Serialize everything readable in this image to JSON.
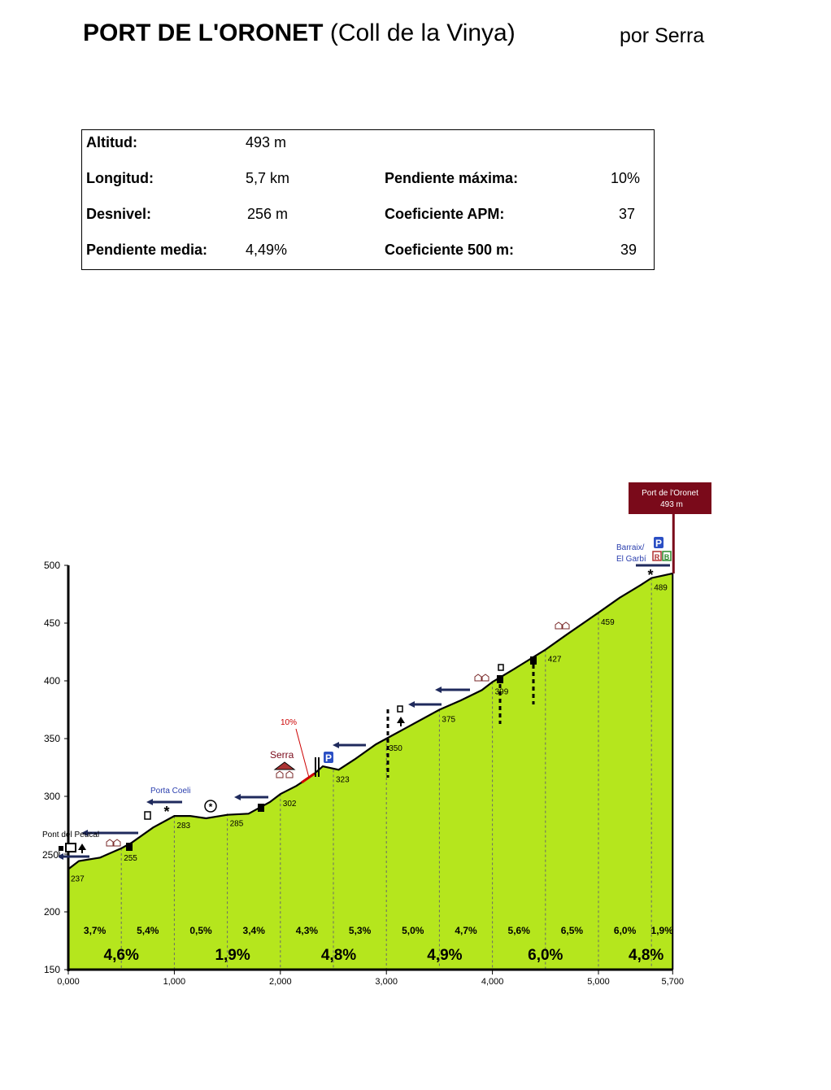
{
  "header": {
    "title_main": "PORT DE L'ORONET",
    "title_sub": "(Coll de la Vinya)",
    "author": "por Serra"
  },
  "stats": {
    "altitud_label": "Altitud:",
    "altitud_value": "493 m",
    "longitud_label": "Longitud:",
    "longitud_value": "5,7 km",
    "desnivel_label": "Desnivel:",
    "desnivel_value": "256 m",
    "pendiente_media_label": "Pendiente media:",
    "pendiente_media_value": "4,49%",
    "pendiente_maxima_label": "Pendiente máxima:",
    "pendiente_maxima_value": "10%",
    "apm_label": "Coeficiente APM:",
    "apm_value": "37",
    "c500_label": "Coeficiente 500 m:",
    "c500_value": "39"
  },
  "chart_data": {
    "type": "area",
    "xlim": [
      0,
      5.7
    ],
    "ylim": [
      150,
      500
    ],
    "x_ticks": [
      0,
      1,
      2,
      3,
      4,
      5,
      5.7
    ],
    "x_tick_labels": [
      "0,000",
      "1,000",
      "2,000",
      "3,000",
      "4,000",
      "5,000",
      "5,700"
    ],
    "y_ticks": [
      150,
      200,
      250,
      300,
      350,
      400,
      450,
      500
    ],
    "y_tick_labels": [
      "150",
      "200",
      "250",
      "300",
      "350",
      "400",
      "450",
      "500"
    ],
    "profile": {
      "x": [
        0,
        0.1,
        0.3,
        0.5,
        0.6,
        0.8,
        1.0,
        1.15,
        1.3,
        1.5,
        1.7,
        1.9,
        2.0,
        2.15,
        2.3,
        2.4,
        2.55,
        2.7,
        2.9,
        3.0,
        3.2,
        3.5,
        3.7,
        3.9,
        4.0,
        4.2,
        4.5,
        4.7,
        5.0,
        5.2,
        5.4,
        5.5,
        5.6,
        5.7
      ],
      "y": [
        237,
        244,
        247,
        255,
        260,
        273,
        283,
        283,
        281,
        284,
        285,
        295,
        302,
        309,
        318,
        326,
        323,
        332,
        345,
        350,
        360,
        375,
        383,
        392,
        399,
        410,
        427,
        440,
        459,
        472,
        483,
        489,
        491,
        493
      ]
    },
    "km_markers": [
      {
        "x": 0,
        "y": 237,
        "label": "237"
      },
      {
        "x": 0.5,
        "y": 255,
        "label": "255"
      },
      {
        "x": 1.0,
        "y": 283,
        "label": "283"
      },
      {
        "x": 1.5,
        "y": 285,
        "label": "285"
      },
      {
        "x": 2.0,
        "y": 302,
        "label": "302"
      },
      {
        "x": 2.5,
        "y": 323,
        "label": "323"
      },
      {
        "x": 3.0,
        "y": 350,
        "label": "350"
      },
      {
        "x": 3.5,
        "y": 375,
        "label": "375"
      },
      {
        "x": 4.0,
        "y": 399,
        "label": "399"
      },
      {
        "x": 4.5,
        "y": 427,
        "label": "427"
      },
      {
        "x": 5.0,
        "y": 459,
        "label": "459"
      },
      {
        "x": 5.5,
        "y": 489,
        "label": "489"
      }
    ],
    "half_km_slopes": [
      {
        "x": 0.25,
        "label": "3,7%"
      },
      {
        "x": 0.75,
        "label": "5,4%"
      },
      {
        "x": 1.25,
        "label": "0,5%"
      },
      {
        "x": 1.75,
        "label": "3,4%"
      },
      {
        "x": 2.25,
        "label": "4,3%"
      },
      {
        "x": 2.75,
        "label": "5,3%"
      },
      {
        "x": 3.25,
        "label": "5,0%"
      },
      {
        "x": 3.75,
        "label": "4,7%"
      },
      {
        "x": 4.25,
        "label": "5,6%"
      },
      {
        "x": 4.75,
        "label": "6,5%"
      },
      {
        "x": 5.25,
        "label": "6,0%"
      },
      {
        "x": 5.6,
        "label": "1,9%"
      }
    ],
    "km_slopes": [
      {
        "x": 0.5,
        "label": "4,6%"
      },
      {
        "x": 1.55,
        "label": "1,9%"
      },
      {
        "x": 2.55,
        "label": "4,8%"
      },
      {
        "x": 3.55,
        "label": "4,9%"
      },
      {
        "x": 4.5,
        "label": "6,0%"
      },
      {
        "x": 5.45,
        "label": "4,8%"
      }
    ],
    "annotations": {
      "pont_del_peucal": "Pont del Peucal",
      "start_elev_label": "250",
      "porta_coeli": "Porta Coeli",
      "serra": "Serra",
      "max_slope": "10%",
      "barraix": "Barraix/",
      "el_garbi": "El Garbí",
      "summit_name": "Port de l'Oronet",
      "summit_elev": "493 m",
      "parking_symbol": "P",
      "parking_symbol_2": "P",
      "badge_r": "R",
      "badge_b": "B",
      "asterisk": "*"
    },
    "colors": {
      "fill": "#b5e61d",
      "profile_line": "#000000",
      "arrow": "#1f2a5c",
      "summit_box": "#7a0a1a",
      "max_slope": "#cc0000",
      "parking": "#2b4fc4",
      "place_label": "#2b3fae"
    },
    "grid": false
  }
}
